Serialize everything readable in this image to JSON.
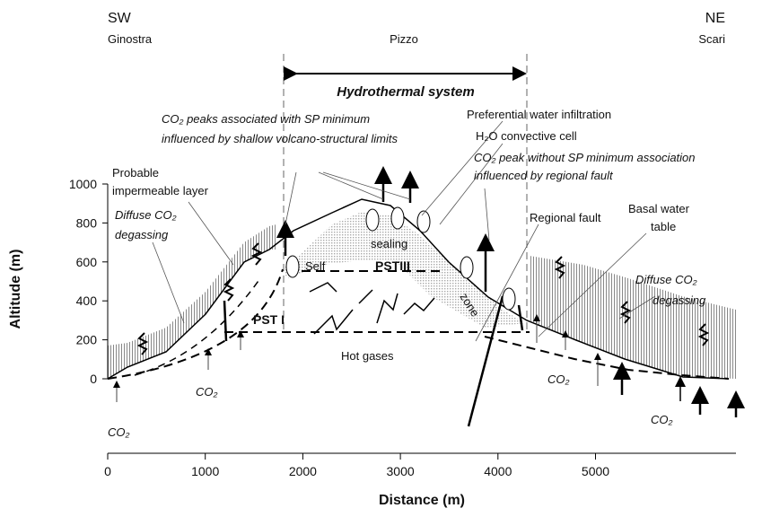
{
  "header": {
    "left_top": "SW",
    "left": "Ginostra",
    "center": "Pizzo",
    "right_top": "NE",
    "right": "Scari"
  },
  "system_label": "Hydrothermal system",
  "annotations": [
    {
      "text": "CO₂ peaks associated with SP minimum"
    },
    {
      "text": "influenced by shallow volcano-structural limits"
    },
    {
      "text": "Preferential water infiltration"
    },
    {
      "text": "H₂O convective cell"
    },
    {
      "text": "CO₂ peak without SP minimum association"
    },
    {
      "text": "influenced by regional fault"
    },
    {
      "text": "Probable"
    },
    {
      "text": "impermeable layer"
    },
    {
      "text": "Diffuse CO₂"
    },
    {
      "text": "degassing"
    },
    {
      "text": "Regional fault"
    },
    {
      "text": "Basal water"
    },
    {
      "text": "table"
    },
    {
      "text": "Diffuse CO₂"
    },
    {
      "text": "degassing"
    },
    {
      "text": "Self"
    },
    {
      "text": "sealing"
    },
    {
      "text": "PSTIII"
    },
    {
      "text": "zone"
    },
    {
      "text": "PST I"
    },
    {
      "text": "Hot gases"
    },
    {
      "text": "CO₂"
    },
    {
      "text": "CO₂"
    },
    {
      "text": "CO₂"
    },
    {
      "text": "CO₂"
    }
  ],
  "axes": {
    "x_label": "Distance (m)",
    "y_label": "Altitude (m)",
    "x_ticks": [
      0,
      1000,
      2000,
      3000,
      4000,
      5000
    ],
    "y_ticks": [
      0,
      200,
      400,
      600,
      800,
      1000
    ]
  }
}
